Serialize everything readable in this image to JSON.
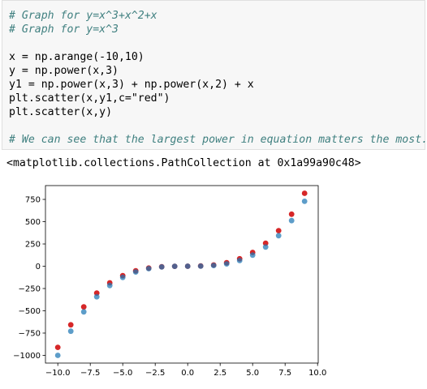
{
  "cell": {
    "lines": [
      {
        "key": "l1",
        "text": "# Graph for y=x^3+x^2+x"
      },
      {
        "key": "l2",
        "text": "# Graph for y=x^3"
      },
      {
        "key": "l3",
        "text": ""
      },
      {
        "key": "l4",
        "text": "x = np.arange(-10,10)"
      },
      {
        "key": "l5",
        "text": "y = np.power(x,3)"
      },
      {
        "key": "l6",
        "text": "y1 = np.power(x,3) + np.power(x,2) + x"
      },
      {
        "key": "l7",
        "text": "plt.scatter(x,y1,c=\"red\")"
      },
      {
        "key": "l8",
        "text": "plt.scatter(x,y)"
      },
      {
        "key": "l9",
        "text": ""
      },
      {
        "key": "l10",
        "text": "# We can see that the largest power in equation matters the most."
      }
    ]
  },
  "output": {
    "text": "<matplotlib.collections.PathCollection at 0x1a99a90c48>"
  },
  "chart_data": {
    "type": "scatter",
    "title": "",
    "xlabel": "",
    "ylabel": "",
    "xlim": [
      -10.95,
      10.05
    ],
    "ylim": [
      -1086.5,
      905
    ],
    "xticks": [
      -10.0,
      -7.5,
      -5.0,
      -2.5,
      0.0,
      2.5,
      5.0,
      7.5,
      10.0
    ],
    "xtick_labels": [
      "−10.0",
      "−7.5",
      "−5.0",
      "−2.5",
      "0.0",
      "2.5",
      "5.0",
      "7.5",
      "10.0"
    ],
    "yticks": [
      -1000,
      -750,
      -500,
      -250,
      0,
      250,
      500,
      750
    ],
    "ytick_labels": [
      "−1000",
      "−750",
      "−500",
      "−250",
      "0",
      "250",
      "500",
      "750"
    ],
    "grid": false,
    "series": [
      {
        "color": "#d62728",
        "x": [
          -10,
          -9,
          -8,
          -7,
          -6,
          -5,
          -4,
          -3,
          -2,
          -1,
          0,
          1,
          2,
          3,
          4,
          5,
          6,
          7,
          8,
          9
        ],
        "values": [
          -910,
          -657,
          -456,
          -301,
          -186,
          -105,
          -52,
          -21,
          -6,
          -1,
          0,
          3,
          14,
          39,
          84,
          155,
          258,
          399,
          584,
          819
        ]
      },
      {
        "color": "#1f77b4",
        "x": [
          -10,
          -9,
          -8,
          -7,
          -6,
          -5,
          -4,
          -3,
          -2,
          -1,
          0,
          1,
          2,
          3,
          4,
          5,
          6,
          7,
          8,
          9
        ],
        "values": [
          -1000,
          -729,
          -512,
          -343,
          -216,
          -125,
          -64,
          -27,
          -8,
          -1,
          0,
          1,
          8,
          27,
          64,
          125,
          216,
          343,
          512,
          729
        ]
      }
    ]
  }
}
